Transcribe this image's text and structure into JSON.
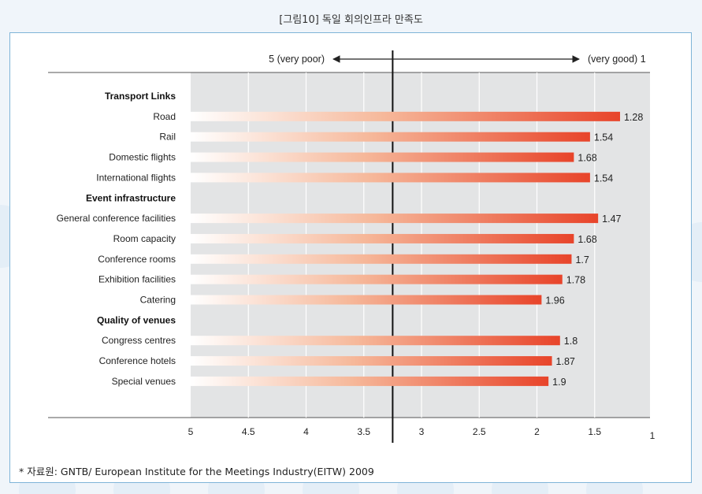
{
  "caption": "[그림10] 독일 회의인프라 만족도",
  "footnote": "* 자료원: GNTB/ European Institute for the Meetings Industry(EITW) 2009",
  "chart_data": {
    "type": "bar",
    "orientation": "horizontal",
    "x_reversed": true,
    "xlim": [
      5,
      1
    ],
    "x_ticks": [
      "5",
      "4.5",
      "4",
      "3.5",
      "3",
      "2.5",
      "2",
      "1.5",
      "1"
    ],
    "reference_line": 3.25,
    "arrow_left_label": "5 (very poor)",
    "arrow_right_label": "(very good) 1",
    "bar_color": "#e8553a",
    "groups": [
      {
        "name": "Transport Links",
        "items": [
          {
            "label": "Road",
            "value": 1.28
          },
          {
            "label": "Rail",
            "value": 1.54
          },
          {
            "label": "Domestic flights",
            "value": 1.68
          },
          {
            "label": "International flights",
            "value": 1.54
          }
        ]
      },
      {
        "name": "Event infrastructure",
        "items": [
          {
            "label": "General conference facilities",
            "value": 1.47
          },
          {
            "label": "Room capacity",
            "value": 1.68
          },
          {
            "label": "Conference rooms",
            "value": 1.7
          },
          {
            "label": "Exhibition facilities",
            "value": 1.78
          },
          {
            "label": "Catering",
            "value": 1.96
          }
        ]
      },
      {
        "name": "Quality of venues",
        "items": [
          {
            "label": "Congress centres",
            "value": 1.8
          },
          {
            "label": "Conference hotels",
            "value": 1.87
          },
          {
            "label": "Special venues",
            "value": 1.9
          }
        ]
      }
    ]
  }
}
